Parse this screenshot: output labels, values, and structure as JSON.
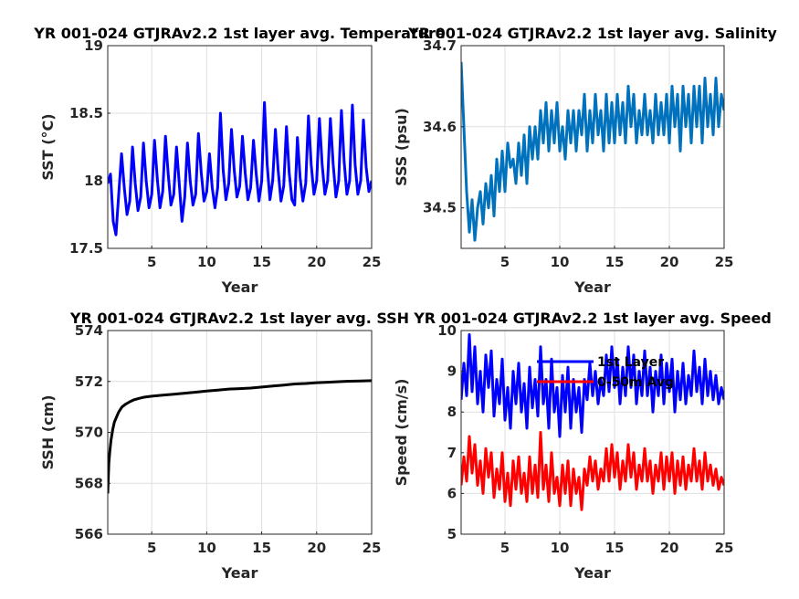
{
  "chart_data": [
    {
      "type": "line",
      "title": "YR 001-024 GTJRAv2.2 1st layer avg. Temperature",
      "xlabel": "Year",
      "ylabel": "SST (°C)",
      "xlim": [
        1,
        25
      ],
      "ylim": [
        17.5,
        19
      ],
      "xticks": [
        5,
        10,
        15,
        20,
        25
      ],
      "yticks": [
        17.5,
        18,
        18.5,
        19
      ],
      "ytick_labels": [
        "17.5",
        "18",
        "18.5",
        "19"
      ],
      "grid": true,
      "series": [
        {
          "color": "#0000ff",
          "x": [
            1.0,
            1.25,
            1.5,
            1.75,
            2.0,
            2.25,
            2.5,
            2.75,
            3.0,
            3.25,
            3.5,
            3.75,
            4.0,
            4.25,
            4.5,
            4.75,
            5.0,
            5.25,
            5.5,
            5.75,
            6.0,
            6.25,
            6.5,
            6.75,
            7.0,
            7.25,
            7.5,
            7.75,
            8.0,
            8.25,
            8.5,
            8.75,
            9.0,
            9.25,
            9.5,
            9.75,
            10.0,
            10.25,
            10.5,
            10.75,
            11.0,
            11.25,
            11.5,
            11.75,
            12.0,
            12.25,
            12.5,
            12.75,
            13.0,
            13.25,
            13.5,
            13.75,
            14.0,
            14.25,
            14.5,
            14.75,
            15.0,
            15.25,
            15.5,
            15.75,
            16.0,
            16.25,
            16.5,
            16.75,
            17.0,
            17.25,
            17.5,
            17.75,
            18.0,
            18.25,
            18.5,
            18.75,
            19.0,
            19.25,
            19.5,
            19.75,
            20.0,
            20.25,
            20.5,
            20.75,
            21.0,
            21.25,
            21.5,
            21.75,
            22.0,
            22.25,
            22.5,
            22.75,
            23.0,
            23.25,
            23.5,
            23.75,
            24.0,
            24.25,
            24.5,
            24.75,
            25.0
          ],
          "y": [
            17.98,
            18.05,
            17.7,
            17.6,
            17.9,
            18.2,
            17.95,
            17.75,
            17.85,
            18.25,
            17.98,
            17.78,
            17.88,
            18.28,
            18.0,
            17.8,
            17.9,
            18.3,
            18.02,
            17.8,
            17.92,
            18.33,
            18.05,
            17.82,
            17.9,
            18.25,
            17.98,
            17.7,
            17.88,
            18.28,
            18.0,
            17.82,
            17.9,
            18.35,
            18.06,
            17.85,
            17.92,
            18.2,
            17.95,
            17.8,
            17.95,
            18.5,
            18.08,
            17.86,
            17.98,
            18.38,
            18.08,
            17.88,
            17.96,
            18.33,
            18.06,
            17.86,
            17.95,
            18.3,
            18.05,
            17.85,
            18.0,
            18.58,
            18.12,
            17.86,
            18.0,
            18.38,
            18.08,
            17.85,
            17.96,
            18.4,
            18.06,
            17.86,
            17.82,
            18.32,
            18.02,
            17.85,
            17.98,
            18.48,
            18.12,
            17.9,
            18.0,
            18.46,
            18.12,
            17.9,
            18.0,
            18.46,
            18.12,
            17.88,
            18.0,
            18.52,
            18.14,
            17.9,
            18.0,
            18.56,
            18.12,
            17.9,
            18.0,
            18.45,
            18.1,
            17.92,
            18.0
          ]
        }
      ]
    },
    {
      "type": "line",
      "title": "YR 001-024 GTJRAv2.2 1st layer avg. Salinity",
      "xlabel": "Year",
      "ylabel": "SSS (psu)",
      "xlim": [
        1,
        25
      ],
      "ylim": [
        34.45,
        34.7
      ],
      "xticks": [
        5,
        10,
        15,
        20,
        25
      ],
      "yticks": [
        34.5,
        34.6,
        34.7
      ],
      "ytick_labels": [
        "34.5",
        "34.6",
        "34.7"
      ],
      "grid": true,
      "series": [
        {
          "color": "#0072bd",
          "x": [
            1.0,
            1.25,
            1.5,
            1.75,
            2.0,
            2.25,
            2.5,
            2.75,
            3.0,
            3.25,
            3.5,
            3.75,
            4.0,
            4.25,
            4.5,
            4.75,
            5.0,
            5.25,
            5.5,
            5.75,
            6.0,
            6.25,
            6.5,
            6.75,
            7.0,
            7.25,
            7.5,
            7.75,
            8.0,
            8.25,
            8.5,
            8.75,
            9.0,
            9.25,
            9.5,
            9.75,
            10.0,
            10.25,
            10.5,
            10.75,
            11.0,
            11.25,
            11.5,
            11.75,
            12.0,
            12.25,
            12.5,
            12.75,
            13.0,
            13.25,
            13.5,
            13.75,
            14.0,
            14.25,
            14.5,
            14.75,
            15.0,
            15.25,
            15.5,
            15.75,
            16.0,
            16.25,
            16.5,
            16.75,
            17.0,
            17.25,
            17.5,
            17.75,
            18.0,
            18.25,
            18.5,
            18.75,
            19.0,
            19.25,
            19.5,
            19.75,
            20.0,
            20.25,
            20.5,
            20.75,
            21.0,
            21.25,
            21.5,
            21.75,
            22.0,
            22.25,
            22.5,
            22.75,
            23.0,
            23.25,
            23.5,
            23.75,
            24.0,
            24.25,
            24.5,
            24.75,
            25.0
          ],
          "y": [
            34.68,
            34.6,
            34.52,
            34.47,
            34.51,
            34.46,
            34.5,
            34.52,
            34.48,
            34.53,
            34.5,
            34.54,
            34.49,
            34.56,
            34.52,
            34.57,
            34.52,
            34.58,
            34.55,
            34.56,
            34.53,
            34.58,
            34.54,
            34.59,
            34.53,
            34.6,
            34.56,
            34.6,
            34.56,
            34.62,
            34.58,
            34.63,
            34.57,
            34.62,
            34.58,
            34.63,
            34.57,
            34.6,
            34.56,
            34.62,
            34.58,
            34.62,
            34.57,
            34.62,
            34.59,
            34.64,
            34.57,
            34.62,
            34.58,
            34.64,
            34.59,
            34.62,
            34.57,
            34.64,
            34.58,
            34.63,
            34.58,
            34.64,
            34.59,
            34.63,
            34.58,
            34.65,
            34.6,
            34.64,
            34.58,
            34.62,
            34.59,
            34.64,
            34.59,
            34.62,
            34.58,
            34.64,
            34.59,
            34.63,
            34.59,
            34.64,
            34.58,
            34.65,
            34.6,
            34.64,
            34.57,
            34.65,
            34.6,
            34.64,
            34.58,
            34.65,
            34.6,
            34.65,
            34.58,
            34.66,
            34.6,
            34.64,
            34.59,
            34.66,
            34.6,
            34.64,
            34.62
          ]
        }
      ]
    },
    {
      "type": "line",
      "title": "YR 001-024 GTJRAv2.2 1st layer avg. SSH",
      "xlabel": "Year",
      "ylabel": "SSH (cm)",
      "xlim": [
        1,
        25
      ],
      "ylim": [
        566,
        574
      ],
      "xticks": [
        5,
        10,
        15,
        20,
        25
      ],
      "yticks": [
        566,
        568,
        570,
        572,
        574
      ],
      "ytick_labels": [
        "566",
        "568",
        "570",
        "572",
        "574"
      ],
      "grid": true,
      "series": [
        {
          "color": "#000000",
          "x": [
            1.0,
            1.05,
            1.1,
            1.2,
            1.3,
            1.45,
            1.6,
            1.8,
            2.0,
            2.3,
            2.6,
            3.0,
            3.4,
            3.8,
            4.3,
            5.0,
            6.0,
            7.0,
            8.0,
            9.0,
            10.0,
            11.0,
            12.0,
            13.0,
            14.0,
            15.0,
            16.0,
            17.0,
            18.0,
            19.0,
            20.0,
            21.0,
            22.0,
            23.0,
            24.0,
            25.0
          ],
          "y": [
            567.6,
            568.2,
            568.8,
            569.3,
            569.7,
            570.1,
            570.4,
            570.6,
            570.8,
            571.0,
            571.1,
            571.2,
            571.28,
            571.33,
            571.38,
            571.42,
            571.46,
            571.5,
            571.54,
            571.58,
            571.62,
            571.66,
            571.7,
            571.72,
            571.74,
            571.78,
            571.82,
            571.86,
            571.9,
            571.92,
            571.95,
            571.97,
            571.99,
            572.01,
            572.02,
            572.03
          ]
        }
      ]
    },
    {
      "type": "line",
      "title": "YR 001-024 GTJRAv2.2 1st layer avg. Speed",
      "xlabel": "Year",
      "ylabel": "Speed (cm/s)",
      "xlim": [
        1,
        25
      ],
      "ylim": [
        5,
        10
      ],
      "xticks": [
        5,
        10,
        15,
        20,
        25
      ],
      "yticks": [
        5,
        6,
        7,
        8,
        9,
        10
      ],
      "ytick_labels": [
        "5",
        "6",
        "7",
        "8",
        "9",
        "10"
      ],
      "grid": true,
      "legend": {
        "placement": "top-right"
      },
      "series": [
        {
          "name": "1st Layer",
          "color": "#0000ff",
          "x": [
            1.0,
            1.25,
            1.5,
            1.75,
            2.0,
            2.25,
            2.5,
            2.75,
            3.0,
            3.25,
            3.5,
            3.75,
            4.0,
            4.25,
            4.5,
            4.75,
            5.0,
            5.25,
            5.5,
            5.75,
            6.0,
            6.25,
            6.5,
            6.75,
            7.0,
            7.25,
            7.5,
            7.75,
            8.0,
            8.25,
            8.5,
            8.75,
            9.0,
            9.25,
            9.5,
            9.75,
            10.0,
            10.25,
            10.5,
            10.75,
            11.0,
            11.25,
            11.5,
            11.75,
            12.0,
            12.25,
            12.5,
            12.75,
            13.0,
            13.25,
            13.5,
            13.75,
            14.0,
            14.25,
            14.5,
            14.75,
            15.0,
            15.25,
            15.5,
            15.75,
            16.0,
            16.25,
            16.5,
            16.75,
            17.0,
            17.25,
            17.5,
            17.75,
            18.0,
            18.25,
            18.5,
            18.75,
            19.0,
            19.25,
            19.5,
            19.75,
            20.0,
            20.25,
            20.5,
            20.75,
            21.0,
            21.25,
            21.5,
            21.75,
            22.0,
            22.25,
            22.5,
            22.75,
            23.0,
            23.25,
            23.5,
            23.75,
            24.0,
            24.25,
            24.5,
            24.75,
            25.0
          ],
          "y": [
            8.3,
            9.2,
            8.4,
            9.9,
            8.5,
            9.6,
            8.2,
            9.0,
            8.0,
            9.4,
            8.6,
            9.5,
            7.9,
            8.8,
            8.2,
            9.3,
            7.8,
            8.6,
            7.6,
            9.0,
            8.2,
            9.2,
            8.0,
            8.7,
            7.6,
            9.1,
            8.1,
            8.8,
            7.9,
            9.6,
            8.2,
            8.8,
            7.6,
            9.3,
            8.0,
            8.6,
            7.4,
            8.9,
            8.0,
            9.1,
            7.6,
            8.8,
            8.0,
            8.6,
            7.5,
            8.8,
            8.3,
            9.2,
            8.4,
            9.0,
            8.2,
            8.8,
            8.4,
            9.4,
            8.5,
            9.6,
            8.6,
            9.3,
            8.2,
            9.1,
            8.4,
            9.6,
            8.6,
            9.4,
            8.2,
            9.0,
            8.4,
            9.5,
            8.4,
            9.1,
            8.0,
            9.0,
            8.4,
            9.4,
            8.2,
            9.2,
            8.5,
            9.3,
            8.0,
            9.0,
            8.3,
            9.2,
            8.2,
            8.9,
            8.4,
            9.5,
            8.5,
            9.1,
            8.2,
            9.3,
            8.4,
            9.0,
            8.3,
            8.9,
            8.2,
            8.6,
            8.3
          ]
        },
        {
          "name": "0-50m Avg",
          "color": "#ff0000",
          "x": [
            1.0,
            1.25,
            1.5,
            1.75,
            2.0,
            2.25,
            2.5,
            2.75,
            3.0,
            3.25,
            3.5,
            3.75,
            4.0,
            4.25,
            4.5,
            4.75,
            5.0,
            5.25,
            5.5,
            5.75,
            6.0,
            6.25,
            6.5,
            6.75,
            7.0,
            7.25,
            7.5,
            7.75,
            8.0,
            8.25,
            8.5,
            8.75,
            9.0,
            9.25,
            9.5,
            9.75,
            10.0,
            10.25,
            10.5,
            10.75,
            11.0,
            11.25,
            11.5,
            11.75,
            12.0,
            12.25,
            12.5,
            12.75,
            13.0,
            13.25,
            13.5,
            13.75,
            14.0,
            14.25,
            14.5,
            14.75,
            15.0,
            15.25,
            15.5,
            15.75,
            16.0,
            16.25,
            16.5,
            16.75,
            17.0,
            17.25,
            17.5,
            17.75,
            18.0,
            18.25,
            18.5,
            18.75,
            19.0,
            19.25,
            19.5,
            19.75,
            20.0,
            20.25,
            20.5,
            20.75,
            21.0,
            21.25,
            21.5,
            21.75,
            22.0,
            22.25,
            22.5,
            22.75,
            23.0,
            23.25,
            23.5,
            23.75,
            24.0,
            24.25,
            24.5,
            24.75,
            25.0
          ],
          "y": [
            6.2,
            6.9,
            6.3,
            7.4,
            6.5,
            7.2,
            6.2,
            6.8,
            6.0,
            7.1,
            6.4,
            7.0,
            5.9,
            6.6,
            6.1,
            7.0,
            5.8,
            6.5,
            5.7,
            6.8,
            6.1,
            6.9,
            6.0,
            6.5,
            5.8,
            6.9,
            6.0,
            6.7,
            5.9,
            7.5,
            6.1,
            6.7,
            5.8,
            7.0,
            6.0,
            6.4,
            5.7,
            6.7,
            6.0,
            6.8,
            5.7,
            6.6,
            6.0,
            6.4,
            5.6,
            6.6,
            6.2,
            6.9,
            6.3,
            6.8,
            6.1,
            6.6,
            6.3,
            7.1,
            6.3,
            7.2,
            6.4,
            7.0,
            6.1,
            6.8,
            6.3,
            7.2,
            6.4,
            7.0,
            6.1,
            6.7,
            6.3,
            7.1,
            6.3,
            6.8,
            6.0,
            6.7,
            6.3,
            7.0,
            6.1,
            6.9,
            6.3,
            7.0,
            6.0,
            6.8,
            6.2,
            6.9,
            6.1,
            6.7,
            6.3,
            7.1,
            6.3,
            6.8,
            6.1,
            7.0,
            6.3,
            6.7,
            6.2,
            6.6,
            6.1,
            6.4,
            6.2
          ]
        }
      ]
    }
  ]
}
